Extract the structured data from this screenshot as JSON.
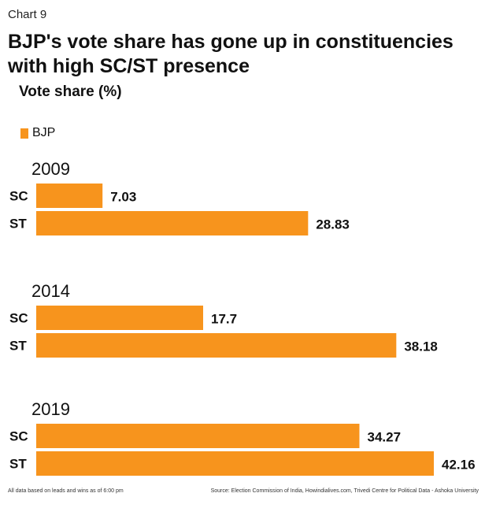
{
  "chart_label": "Chart 9",
  "title_lines": [
    "BJP's vote share has gone up in constituencies",
    "with high SC/ST presence"
  ],
  "subtitle": "Vote share (%)",
  "legend": {
    "label": "BJP",
    "color": "#f7941d"
  },
  "footnote": "All data based on leads and wins as of 6:00 pm",
  "source": "Source: Election Commission of India, Howindialives.com, Trivedi Centre for Political Data - Ashoka University",
  "chart_data": {
    "type": "bar",
    "orientation": "horizontal",
    "groups": [
      "2009",
      "2014",
      "2019"
    ],
    "categories": [
      "SC",
      "ST"
    ],
    "series": [
      {
        "name": "BJP",
        "color": "#f7941d",
        "values": [
          [
            7.03,
            28.83
          ],
          [
            17.7,
            38.18
          ],
          [
            34.27,
            42.16
          ]
        ],
        "value_labels": [
          [
            "7.03",
            "28.83"
          ],
          [
            "17.7",
            "38.18"
          ],
          [
            "34.27",
            "42.16"
          ]
        ]
      }
    ],
    "xlim": [
      0,
      42.16
    ],
    "grid": false,
    "legend_position": "top-left"
  }
}
